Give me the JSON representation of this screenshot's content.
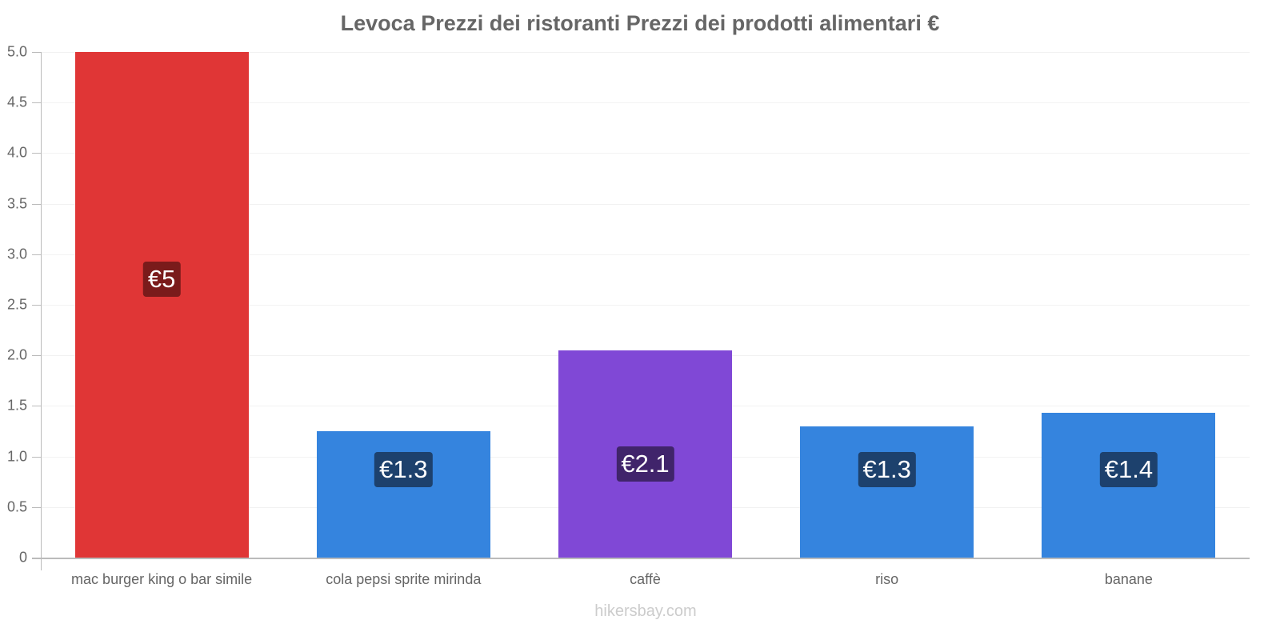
{
  "chart_data": {
    "type": "bar",
    "title": "Levoca Prezzi dei ristoranti Prezzi dei prodotti alimentari €",
    "xlabel": "",
    "ylabel": "",
    "ylim": [
      0,
      5.0
    ],
    "yticks": [
      "0",
      "0.5",
      "1.0",
      "1.5",
      "2.0",
      "2.5",
      "3.0",
      "3.5",
      "4.0",
      "4.5",
      "5.0"
    ],
    "grid": true,
    "legend": null,
    "categories": [
      "mac burger king o bar simile",
      "cola pepsi sprite mirinda",
      "caffè",
      "riso",
      "banane"
    ],
    "values": [
      5.0,
      1.25,
      2.05,
      1.3,
      1.43
    ],
    "data_labels": [
      "€5",
      "€1.3",
      "€2.1",
      "€1.3",
      "€1.4"
    ],
    "colors": [
      "#e03636",
      "#3584de",
      "#8048d6",
      "#3584de",
      "#3584de"
    ],
    "label_colors": [
      "#7a1b1b",
      "#1d416d",
      "#40246b",
      "#1d416d",
      "#1d416d"
    ]
  },
  "footer": {
    "watermark": "hikersbay.com"
  }
}
